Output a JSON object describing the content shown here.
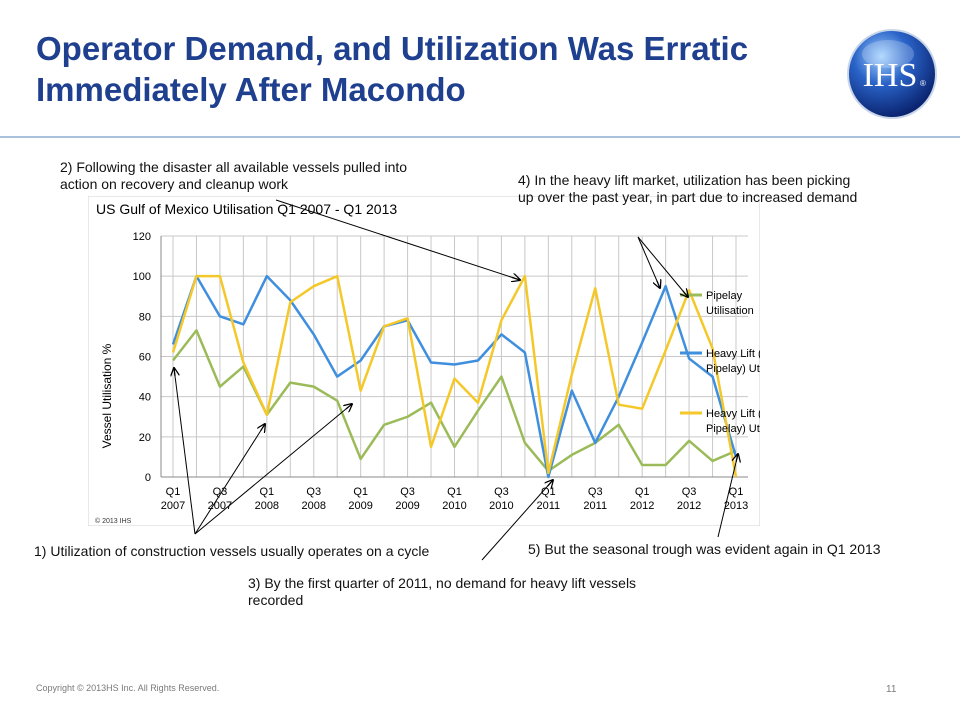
{
  "slide": {
    "title": "Operator Demand, and Utilization Was Erratic Immediately After Macondo",
    "footer": "Copyright © 2013HS Inc. All Rights Reserved.",
    "page_number": "11",
    "logo_text": "IHS",
    "logo_mark": "®"
  },
  "annotations": {
    "note1": "1) Utilization of construction vessels usually operates on a cycle",
    "note2": "2) Following the disaster all available vessels pulled into action on recovery and cleanup work",
    "note3": "3) By the first quarter of 2011, no demand for heavy lift vessels recorded",
    "note4": "4) In the heavy lift market, utilization has been picking up over the past year, in part due to increased demand",
    "note5": "5) But the seasonal trough was evident again in Q1 2013"
  },
  "chart_data": {
    "type": "line",
    "title": "US Gulf of Mexico Utilisation Q1 2007 - Q1 2013",
    "ylabel": "Vessel Utilisation %",
    "xlabel": "",
    "ylim": [
      0,
      120
    ],
    "yticks": [
      0,
      20,
      40,
      60,
      80,
      100,
      120
    ],
    "grid": true,
    "legend": "right",
    "copyright": "© 2013 IHS",
    "x": [
      "Q1 2007",
      "Q2 2007",
      "Q3 2007",
      "Q4 2007",
      "Q1 2008",
      "Q2 2008",
      "Q3 2008",
      "Q4 2008",
      "Q1 2009",
      "Q2 2009",
      "Q3 2009",
      "Q4 2009",
      "Q1 2010",
      "Q2 2010",
      "Q3 2010",
      "Q4 2010",
      "Q1 2011",
      "Q2 2011",
      "Q3 2011",
      "Q4 2011",
      "Q1 2012",
      "Q2 2012",
      "Q3 2012",
      "Q4 2012",
      "Q1 2013"
    ],
    "tick_labels": [
      {
        "index": 0,
        "line1": "Q1",
        "line2": "2007"
      },
      {
        "index": 2,
        "line1": "Q3",
        "line2": "2007"
      },
      {
        "index": 4,
        "line1": "Q1",
        "line2": "2008"
      },
      {
        "index": 6,
        "line1": "Q3",
        "line2": "2008"
      },
      {
        "index": 8,
        "line1": "Q1",
        "line2": "2009"
      },
      {
        "index": 10,
        "line1": "Q3",
        "line2": "2009"
      },
      {
        "index": 12,
        "line1": "Q1",
        "line2": "2010"
      },
      {
        "index": 14,
        "line1": "Q3",
        "line2": "2010"
      },
      {
        "index": 16,
        "line1": "Q1",
        "line2": "2011"
      },
      {
        "index": 18,
        "line1": "Q3",
        "line2": "2011"
      },
      {
        "index": 20,
        "line1": "Q1",
        "line2": "2012"
      },
      {
        "index": 22,
        "line1": "Q3",
        "line2": "2012"
      },
      {
        "index": 24,
        "line1": "Q1",
        "line2": "2013"
      }
    ],
    "series": [
      {
        "name": "Pipelay Utilisation",
        "color": "#9bbb59",
        "values": [
          58,
          73,
          45,
          55,
          31,
          47,
          45,
          38,
          9,
          26,
          30,
          37,
          15,
          33,
          50,
          17,
          3,
          11,
          17,
          26,
          6,
          6,
          18,
          8,
          13
        ]
      },
      {
        "name": "Heavy Lift (With Pipelay) Utilisation",
        "color": "#3f8fde",
        "values": [
          66,
          100,
          80,
          76,
          100,
          88,
          71,
          50,
          58,
          75,
          78,
          57,
          56,
          58,
          71,
          62,
          0,
          43,
          17,
          40,
          67,
          95,
          59,
          50,
          10
        ]
      },
      {
        "name": "Heavy Lift (No Pipelay) Utilisation",
        "color": "#f5c82a",
        "values": [
          62,
          100,
          100,
          57,
          31,
          87,
          95,
          100,
          43,
          75,
          79,
          15,
          49,
          37,
          78,
          100,
          2,
          51,
          94,
          36,
          34,
          63,
          93,
          64,
          0
        ]
      }
    ]
  }
}
